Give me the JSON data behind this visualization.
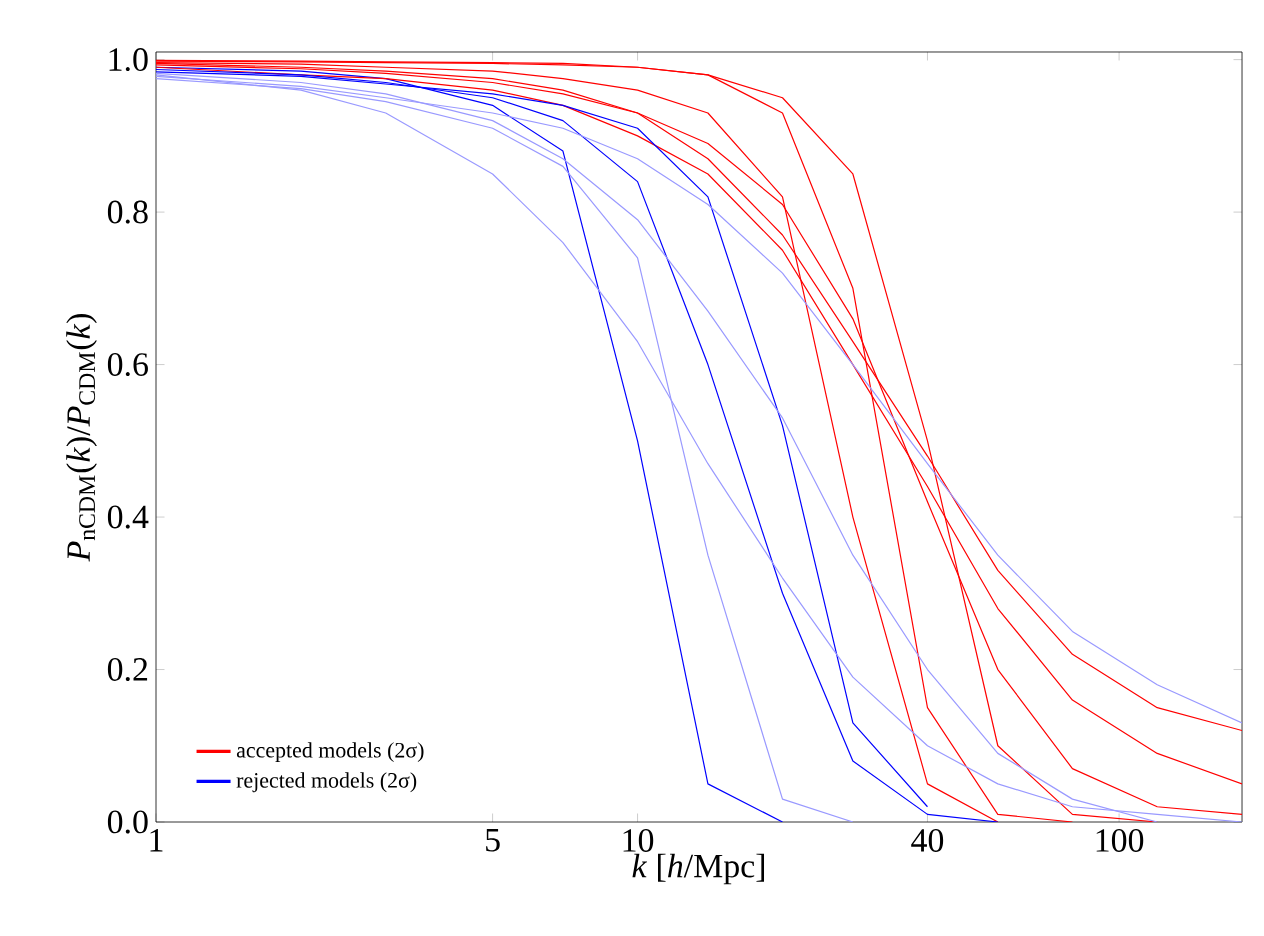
{
  "chart_data": {
    "type": "line",
    "xlabel": "*k* [*h*/Mpc]",
    "ylabel": "*P*$_{nCDM}$(*k*)/*P*$_{CDM}$(*k*)",
    "log": "x",
    "legend": "bottom left",
    "marker": "none",
    "line_style": "solid",
    "grid": false,
    "x": [
      1,
      2,
      3,
      5,
      7,
      10,
      14,
      20,
      28,
      40,
      56,
      80,
      120,
      180
    ],
    "xlim": [
      1,
      180
    ],
    "ylim": [
      0,
      1.01
    ],
    "xticks": [
      1,
      5,
      10,
      40,
      100
    ],
    "yticks": [
      {
        "value": 0,
        "label": "0.0"
      },
      {
        "value": 0.2,
        "label": "0.2"
      },
      {
        "value": 0.4,
        "label": "0.4"
      },
      {
        "value": 0.6,
        "label": "0.6"
      },
      {
        "value": 0.8,
        "label": "0.8"
      },
      {
        "value": 1,
        "label": "1.0"
      }
    ],
    "series": [
      {
        "name": "accepted models (2σ)",
        "color": "#ff0000",
        "values": [
          0.998,
          0.997,
          0.996,
          0.995,
          0.993,
          0.99,
          0.98,
          0.95,
          0.85,
          0.5,
          0.1,
          0.01,
          0,
          null
        ]
      },
      {
        "name": "rejected models (2σ)",
        "color": "#0000ff",
        "values": [
          0.99,
          0.985,
          0.975,
          0.94,
          0.88,
          0.5,
          0.05,
          0,
          null,
          null,
          null,
          null,
          null,
          null
        ]
      },
      {
        "color": "#ff0000",
        "values": [
          0.995,
          0.99,
          0.985,
          0.975,
          0.96,
          0.93,
          0.87,
          0.77,
          0.63,
          0.48,
          0.33,
          0.22,
          0.15,
          0.12
        ]
      },
      {
        "color": "#ff0000",
        "values": [
          0.993,
          0.988,
          0.982,
          0.97,
          0.955,
          0.93,
          0.89,
          0.81,
          0.66,
          0.42,
          0.2,
          0.07,
          0.02,
          0.01
        ]
      },
      {
        "color": "#ff0000",
        "values": [
          0.996,
          0.994,
          0.99,
          0.985,
          0.975,
          0.96,
          0.93,
          0.82,
          0.4,
          0.05,
          0,
          null,
          null,
          null
        ]
      },
      {
        "color": "#ff0000",
        "values": [
          0.999,
          0.998,
          0.997,
          0.996,
          0.995,
          0.99,
          0.98,
          0.93,
          0.7,
          0.15,
          0.01,
          0,
          null,
          null
        ]
      },
      {
        "color": "#ff0000",
        "values": [
          0.99,
          0.98,
          0.975,
          0.96,
          0.94,
          0.9,
          0.85,
          0.75,
          0.6,
          0.44,
          0.28,
          0.16,
          0.09,
          0.05
        ]
      },
      {
        "color": "#0000ff",
        "values": [
          0.987,
          0.98,
          0.97,
          0.95,
          0.92,
          0.84,
          0.6,
          0.3,
          0.08,
          0.01,
          0,
          null,
          null,
          null
        ]
      },
      {
        "color": "#0000ff",
        "values": [
          0.984,
          0.978,
          0.968,
          0.955,
          0.94,
          0.91,
          0.82,
          0.52,
          0.13,
          0.02,
          null,
          null,
          null,
          null
        ]
      },
      {
        "color": "#9999ff",
        "values": [
          0.98,
          0.96,
          0.93,
          0.85,
          0.76,
          0.63,
          0.47,
          0.32,
          0.19,
          0.1,
          0.05,
          0.02,
          0.01,
          0
        ]
      },
      {
        "color": "#9999ff",
        "values": [
          0.982,
          0.97,
          0.955,
          0.92,
          0.87,
          0.79,
          0.67,
          0.53,
          0.35,
          0.2,
          0.09,
          0.03,
          0,
          null
        ]
      },
      {
        "color": "#9999ff",
        "values": [
          0.978,
          0.965,
          0.95,
          0.93,
          0.91,
          0.87,
          0.81,
          0.72,
          0.6,
          0.47,
          0.35,
          0.25,
          0.18,
          0.13
        ]
      },
      {
        "color": "#9999ff",
        "values": [
          0.975,
          0.962,
          0.945,
          0.91,
          0.86,
          0.74,
          0.35,
          0.03,
          0,
          null,
          null,
          null,
          null,
          null
        ]
      }
    ]
  }
}
